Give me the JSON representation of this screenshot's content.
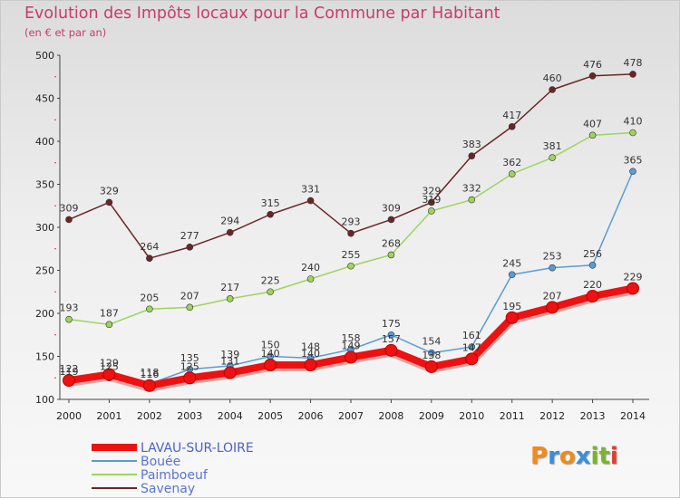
{
  "title": "Evolution des Impôts locaux pour la Commune par Habitant",
  "subtitle": "(en € et par an)",
  "logo": {
    "letters": [
      {
        "ch": "P",
        "color": "#f08a1c"
      },
      {
        "ch": "r",
        "color": "#3a8fd8"
      },
      {
        "ch": "o",
        "color": "#f08a1c"
      },
      {
        "ch": "x",
        "color": "#3a8fd8"
      },
      {
        "ch": "i",
        "color": "#7ab52e"
      },
      {
        "ch": "t",
        "color": "#7ab52e"
      },
      {
        "ch": "i",
        "color": "#e23c33"
      }
    ]
  },
  "chart_data": {
    "type": "line",
    "title": "Evolution des Impôts locaux pour la Commune par Habitant",
    "subtitle": "(en € et par an)",
    "xlabel": "",
    "ylabel": "",
    "x": [
      2000,
      2001,
      2002,
      2003,
      2004,
      2005,
      2006,
      2007,
      2008,
      2009,
      2010,
      2011,
      2012,
      2013,
      2014
    ],
    "ylim": [
      100,
      500
    ],
    "yticks": [
      100,
      150,
      200,
      250,
      300,
      350,
      400,
      450,
      500
    ],
    "grid": false,
    "legend_position": "bottom-left",
    "series": [
      {
        "name": "LAVAU-SUR-LOIRE",
        "color": "#ee1111",
        "highlight": true,
        "values": [
          122,
          129,
          116,
          125,
          131,
          140,
          140,
          149,
          157,
          138,
          147,
          195,
          207,
          220,
          229
        ]
      },
      {
        "name": "Bouée",
        "color": "#5b9bd5",
        "values": [
          119,
          125,
          118,
          135,
          139,
          150,
          148,
          158,
          175,
          154,
          161,
          245,
          253,
          256,
          365
        ]
      },
      {
        "name": "Paimboeuf",
        "color": "#9ed45c",
        "values": [
          193,
          187,
          205,
          207,
          217,
          225,
          240,
          255,
          268,
          319,
          332,
          362,
          381,
          407,
          410
        ]
      },
      {
        "name": "Savenay",
        "color": "#6b2525",
        "values": [
          309,
          329,
          264,
          277,
          294,
          315,
          331,
          293,
          309,
          329,
          383,
          417,
          460,
          476,
          478
        ]
      }
    ]
  }
}
